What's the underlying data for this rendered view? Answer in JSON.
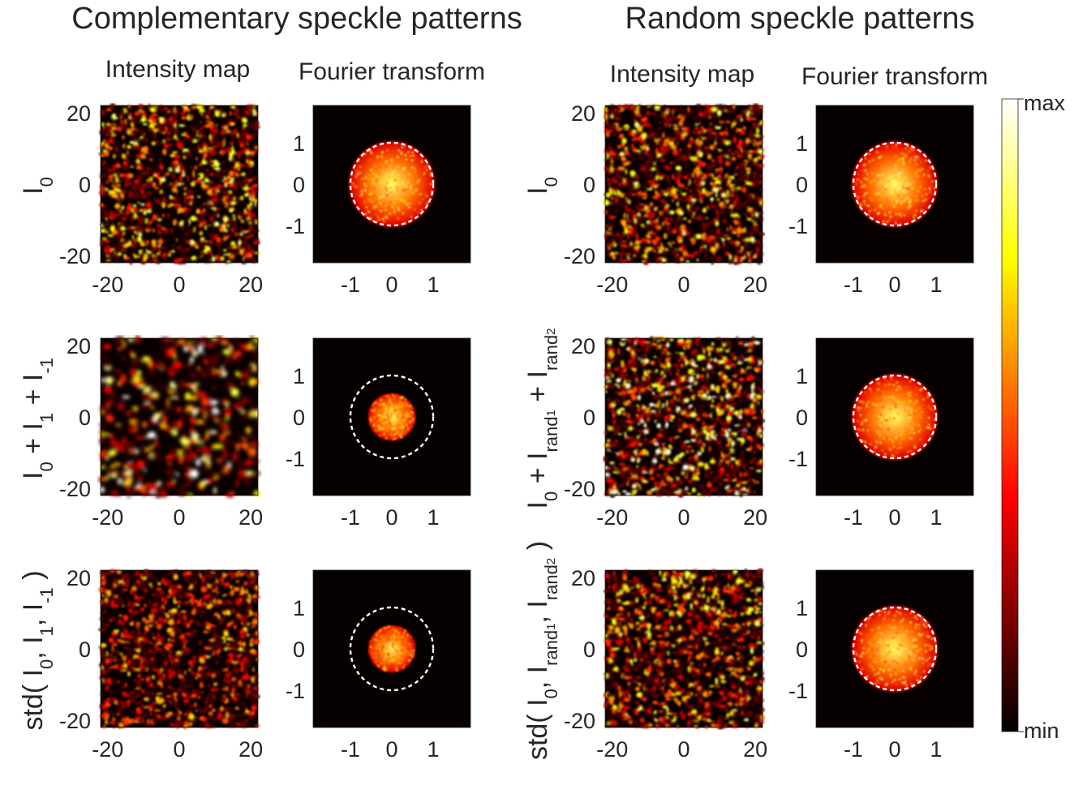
{
  "chart_data": {
    "type": "heatmap",
    "colormap": "hot",
    "groups": [
      {
        "title": "Complementary speckle patterns",
        "columns": [
          "Intensity map",
          "Fourier transform"
        ],
        "rows": [
          {
            "label": "I_0",
            "intensity_brightness": 0.5,
            "intensity_grain": "fine",
            "fourier_disk_radius": 1.0,
            "fourier_intensity": 0.85
          },
          {
            "label": "I_0 + I_1 + I_-1",
            "intensity_brightness": 0.62,
            "intensity_grain": "coarse",
            "fourier_disk_radius": 0.55,
            "fourier_intensity": 0.75
          },
          {
            "label": "std( I_0, I_1, I_-1 )",
            "intensity_brightness": 0.4,
            "intensity_grain": "fine",
            "fourier_disk_radius": 0.55,
            "fourier_intensity": 0.7
          }
        ]
      },
      {
        "title": "Random speckle patterns",
        "columns": [
          "Intensity map",
          "Fourier transform"
        ],
        "rows": [
          {
            "label": "I_0",
            "intensity_brightness": 0.5,
            "intensity_grain": "fine",
            "fourier_disk_radius": 1.0,
            "fourier_intensity": 0.85
          },
          {
            "label": "I_0 + I_rand1 + I_rand2",
            "intensity_brightness": 0.58,
            "intensity_grain": "fine",
            "fourier_disk_radius": 1.0,
            "fourier_intensity": 0.8
          },
          {
            "label": "std( I_0, I_rand1, I_rand2 )",
            "intensity_brightness": 0.48,
            "intensity_grain": "fine",
            "fourier_disk_radius": 1.0,
            "fourier_intensity": 0.85
          }
        ]
      }
    ],
    "intensity_axes": {
      "xlim": [
        -22,
        22
      ],
      "ylim": [
        -22,
        22
      ],
      "ticks": [
        -20,
        0,
        20
      ]
    },
    "fourier_axes": {
      "xlim": [
        -1.9,
        1.9
      ],
      "ylim": [
        -1.9,
        1.9
      ],
      "ticks": [
        -1,
        0,
        1
      ]
    },
    "cutoff_circle_radius": 1.0,
    "colorbar": {
      "max_label": "max",
      "min_label": "min"
    }
  }
}
